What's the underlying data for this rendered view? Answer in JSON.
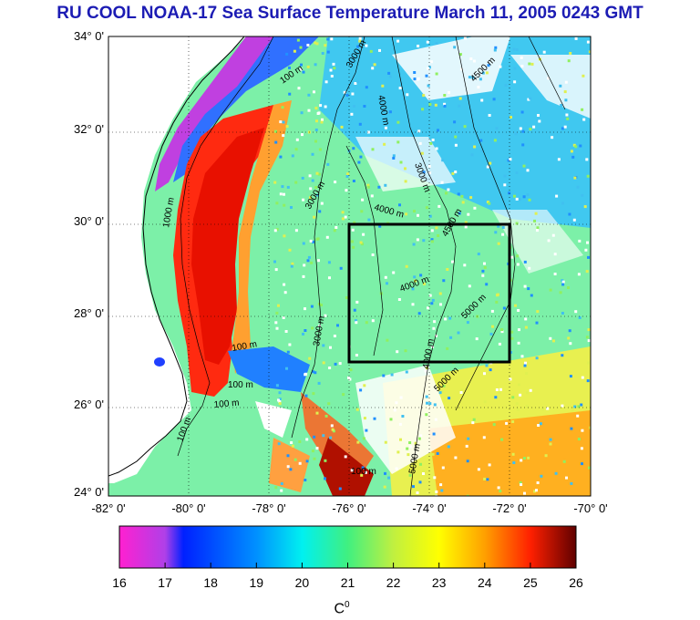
{
  "title": "RU COOL  NOAA-17 Sea Surface Temperature March 11, 2005 0243 GMT",
  "map": {
    "lon_range": [
      -82,
      -70
    ],
    "lat_range": [
      24,
      34
    ],
    "lat_labels": [
      "34° 0'",
      "32° 0'",
      "30° 0'",
      "28° 0'",
      "26° 0'",
      "24° 0'"
    ],
    "lon_labels": [
      "-82° 0'",
      "-80° 0'",
      "-78° 0'",
      "-76° 0'",
      "-74° 0'",
      "-72° 0'",
      "-70° 0'"
    ],
    "study_box": {
      "lon": [
        -76,
        -72
      ],
      "lat": [
        27,
        30
      ]
    },
    "contour_labels": [
      "100 m",
      "3000 m",
      "4500 m",
      "4000 m",
      "3000 m",
      "4000 m",
      "1000 m",
      "3000 m",
      "4000 m",
      "4500 m",
      "5000 m",
      "100 m",
      "100 m",
      "100 m",
      "4000 m",
      "5000 m",
      "100 m",
      "3000 m",
      "100 m",
      "5000 m"
    ]
  },
  "colorbar": {
    "ticks": [
      "16",
      "17",
      "18",
      "19",
      "20",
      "21",
      "22",
      "23",
      "24",
      "25",
      "26"
    ],
    "unit": "C",
    "unit_sup": "0",
    "colors": [
      "#ff20d0",
      "#b040e8",
      "#0020ff",
      "#0090ff",
      "#00f0f0",
      "#40f080",
      "#c0f040",
      "#ffff00",
      "#ffa000",
      "#ff2000",
      "#600000"
    ]
  }
}
